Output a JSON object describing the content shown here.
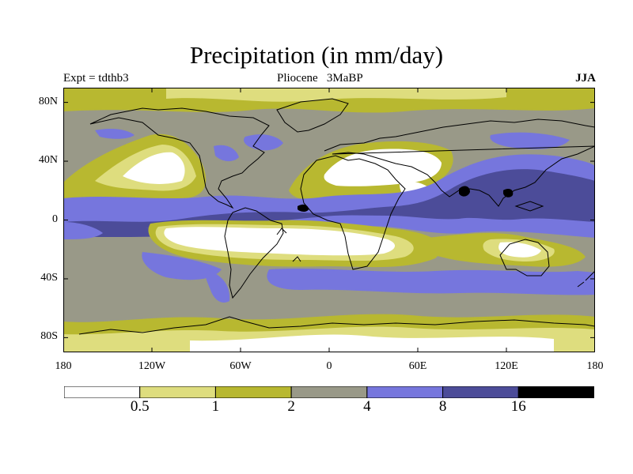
{
  "header": {
    "title": "Precipitation (in mm/day)",
    "experiment": "Expt = tdthb3",
    "period": "Pliocene   3MaBP",
    "season": "JJA"
  },
  "axes": {
    "y_ticks": [
      {
        "lat": 80,
        "label": "80N"
      },
      {
        "lat": 40,
        "label": "40N"
      },
      {
        "lat": 0,
        "label": "0"
      },
      {
        "lat": -40,
        "label": "40S"
      },
      {
        "lat": -80,
        "label": "80S"
      }
    ],
    "x_ticks": [
      {
        "lon": -180,
        "label": "180"
      },
      {
        "lon": -120,
        "label": "120W"
      },
      {
        "lon": -60,
        "label": "60W"
      },
      {
        "lon": 0,
        "label": "0"
      },
      {
        "lon": 60,
        "label": "60E"
      },
      {
        "lon": 120,
        "label": "120E"
      },
      {
        "lon": 180,
        "label": "180"
      }
    ]
  },
  "colorbar": {
    "colors": [
      "#ffffff",
      "#dedd7e",
      "#b8b830",
      "#999988",
      "#7676dd",
      "#4c4c99",
      "#000000"
    ],
    "labels": [
      "0.5",
      "1",
      "2",
      "4",
      "8",
      "16"
    ]
  },
  "legend_colors": {
    "lt05": "#ffffff",
    "b05_1": "#dedd7e",
    "b1_2": "#b8b830",
    "b2_4": "#999988",
    "b4_8": "#7676dd",
    "b8_16": "#4c4c99",
    "gt16": "#000000"
  }
}
